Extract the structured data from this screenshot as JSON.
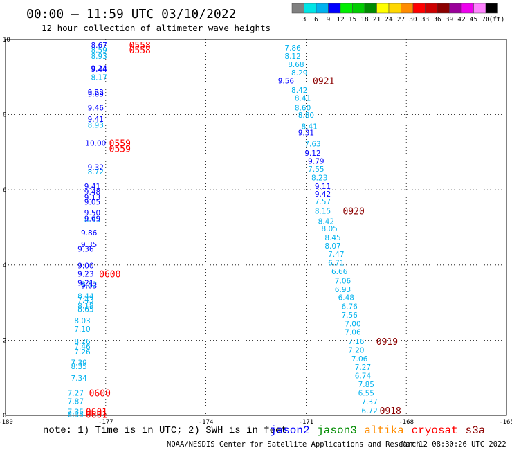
{
  "header": {
    "title": "00:00 — 11:59 UTC 03/10/2022",
    "subtitle": "12 hour collection of altimeter wave heights"
  },
  "legend": {
    "unit": "(ft)",
    "levels": [
      {
        "label": "3",
        "color": "#808080"
      },
      {
        "label": "6",
        "color": "#00e5e5"
      },
      {
        "label": "9",
        "color": "#00b2ee"
      },
      {
        "label": "12",
        "color": "#0000ff"
      },
      {
        "label": "15",
        "color": "#00ee00"
      },
      {
        "label": "18",
        "color": "#00cd00"
      },
      {
        "label": "21",
        "color": "#008b00"
      },
      {
        "label": "24",
        "color": "#ffff00"
      },
      {
        "label": "27",
        "color": "#ffd700"
      },
      {
        "label": "30",
        "color": "#ff8c00"
      },
      {
        "label": "33",
        "color": "#ff0000"
      },
      {
        "label": "36",
        "color": "#cd0000"
      },
      {
        "label": "39",
        "color": "#8b0000"
      },
      {
        "label": "42",
        "color": "#9a009a"
      },
      {
        "label": "45",
        "color": "#ee00ee"
      },
      {
        "label": "70",
        "color": "#ff82ff"
      },
      {
        "label": "",
        "color": "#000000"
      }
    ]
  },
  "footer": {
    "note": "note: 1) Time is in UTC; 2) SWH is in feet",
    "satellites": [
      {
        "name": "jason2",
        "color": "#0000ff"
      },
      {
        "name": "jason3",
        "color": "#008b00"
      },
      {
        "name": "altika",
        "color": "#ff8c00"
      },
      {
        "name": "cryosat",
        "color": "#ff0000"
      },
      {
        "name": "s3a",
        "color": "#8b0000"
      }
    ],
    "credit": "NOAA/NESDIS Center for Satellite Applications and Research",
    "timestamp": "Mar 12 08:30:26 UTC 2022"
  },
  "chart_data": {
    "type": "scatter",
    "xlim": [
      -180,
      -165
    ],
    "ylim": [
      0,
      10
    ],
    "x_ticks": [
      "-180",
      "-177",
      "-174",
      "-171",
      "-168",
      "-165"
    ],
    "x_tick_values": [
      -180,
      -177,
      -174,
      -171,
      -168,
      -165
    ],
    "y_ticks": [
      "0",
      "2",
      "4",
      "6",
      "8",
      "10"
    ],
    "y_tick_values": [
      0,
      2,
      4,
      6,
      8,
      10
    ],
    "grid": true,
    "series": [
      {
        "color": "#00b2ee",
        "points": [
          {
            "x": -177.2,
            "y": 9.72,
            "v": "8.59"
          },
          {
            "x": -177.2,
            "y": 9.56,
            "v": "8.93"
          },
          {
            "x": -177.2,
            "y": 9.0,
            "v": "8.17"
          },
          {
            "x": -177.3,
            "y": 7.73,
            "v": "8.93"
          },
          {
            "x": -177.3,
            "y": 6.48,
            "v": "8.72"
          },
          {
            "x": -177.4,
            "y": 5.21,
            "v": "8.95"
          },
          {
            "x": -177.5,
            "y": 3.49,
            "v": "8.32"
          },
          {
            "x": -177.6,
            "y": 3.18,
            "v": "8.44"
          },
          {
            "x": -177.6,
            "y": 3.08,
            "v": "7.43"
          },
          {
            "x": -177.6,
            "y": 2.92,
            "v": "8.18"
          },
          {
            "x": -177.6,
            "y": 2.83,
            "v": "8.65"
          },
          {
            "x": -177.7,
            "y": 2.52,
            "v": "8.03"
          },
          {
            "x": -177.7,
            "y": 2.3,
            "v": "7.10"
          },
          {
            "x": -177.7,
            "y": 1.97,
            "v": "8.26"
          },
          {
            "x": -177.7,
            "y": 1.83,
            "v": "7.46"
          },
          {
            "x": -177.7,
            "y": 1.69,
            "v": "7.26"
          },
          {
            "x": -177.8,
            "y": 1.41,
            "v": "7.39"
          },
          {
            "x": -177.8,
            "y": 1.31,
            "v": "8.35"
          },
          {
            "x": -177.8,
            "y": 0.99,
            "v": "7.34"
          },
          {
            "x": -177.9,
            "y": 0.6,
            "v": "7.27"
          },
          {
            "x": -177.9,
            "y": 0.38,
            "v": "7.87"
          },
          {
            "x": -177.9,
            "y": 0.1,
            "v": "7.35"
          },
          {
            "x": -177.9,
            "y": 0.03,
            "v": "8.35"
          },
          {
            "x": -171.4,
            "y": 9.78,
            "v": "7.86"
          },
          {
            "x": -171.4,
            "y": 9.56,
            "v": "8.12"
          },
          {
            "x": -171.3,
            "y": 9.34,
            "v": "8.68"
          },
          {
            "x": -171.2,
            "y": 9.12,
            "v": "8.29"
          },
          {
            "x": -171.2,
            "y": 8.66,
            "v": "8.42"
          },
          {
            "x": -171.1,
            "y": 8.44,
            "v": "8.41"
          },
          {
            "x": -171.1,
            "y": 8.19,
            "v": "8.60"
          },
          {
            "x": -171.0,
            "y": 7.99,
            "v": "8.80"
          },
          {
            "x": -170.9,
            "y": 7.69,
            "v": "8.41"
          },
          {
            "x": -170.8,
            "y": 7.23,
            "v": "7.63"
          },
          {
            "x": -170.7,
            "y": 6.56,
            "v": "7.55"
          },
          {
            "x": -170.6,
            "y": 6.33,
            "v": "8.23"
          },
          {
            "x": -170.5,
            "y": 5.69,
            "v": "7.57"
          },
          {
            "x": -170.5,
            "y": 5.44,
            "v": "8.15"
          },
          {
            "x": -170.4,
            "y": 5.17,
            "v": "8.42"
          },
          {
            "x": -170.3,
            "y": 4.97,
            "v": "8.05"
          },
          {
            "x": -170.2,
            "y": 4.73,
            "v": "8.45"
          },
          {
            "x": -170.2,
            "y": 4.51,
            "v": "8.07"
          },
          {
            "x": -170.1,
            "y": 4.29,
            "v": "7.47"
          },
          {
            "x": -170.1,
            "y": 4.06,
            "v": "6.71"
          },
          {
            "x": -170.0,
            "y": 3.83,
            "v": "6.66"
          },
          {
            "x": -169.9,
            "y": 3.58,
            "v": "7.06"
          },
          {
            "x": -169.9,
            "y": 3.35,
            "v": "6.93"
          },
          {
            "x": -169.8,
            "y": 3.14,
            "v": "6.48"
          },
          {
            "x": -169.7,
            "y": 2.9,
            "v": "6.76"
          },
          {
            "x": -169.7,
            "y": 2.67,
            "v": "7.56"
          },
          {
            "x": -169.6,
            "y": 2.44,
            "v": "7.00"
          },
          {
            "x": -169.6,
            "y": 2.22,
            "v": "7.06"
          },
          {
            "x": -169.5,
            "y": 1.97,
            "v": "7.16"
          },
          {
            "x": -169.5,
            "y": 1.74,
            "v": "7.20"
          },
          {
            "x": -169.4,
            "y": 1.51,
            "v": "7.06"
          },
          {
            "x": -169.3,
            "y": 1.29,
            "v": "7.27"
          },
          {
            "x": -169.3,
            "y": 1.06,
            "v": "6.74"
          },
          {
            "x": -169.2,
            "y": 0.83,
            "v": "7.85"
          },
          {
            "x": -169.2,
            "y": 0.6,
            "v": "6.55"
          },
          {
            "x": -169.1,
            "y": 0.37,
            "v": "7.37"
          },
          {
            "x": -169.1,
            "y": 0.13,
            "v": "6.72"
          }
        ]
      },
      {
        "color": "#0000ff",
        "points": [
          {
            "x": -177.2,
            "y": 9.85,
            "v": "8.67"
          },
          {
            "x": -177.2,
            "y": 9.24,
            "v": "9.24"
          },
          {
            "x": -177.2,
            "y": 9.21,
            "v": "9.44"
          },
          {
            "x": -177.3,
            "y": 8.6,
            "v": "9.22"
          },
          {
            "x": -177.3,
            "y": 8.55,
            "v": "9.09"
          },
          {
            "x": -177.3,
            "y": 8.19,
            "v": "9.46"
          },
          {
            "x": -177.3,
            "y": 7.88,
            "v": "9.41"
          },
          {
            "x": -177.3,
            "y": 7.25,
            "v": "10.00"
          },
          {
            "x": -177.3,
            "y": 6.6,
            "v": "9.32"
          },
          {
            "x": -177.4,
            "y": 6.1,
            "v": "9.41"
          },
          {
            "x": -177.4,
            "y": 5.95,
            "v": "9.48"
          },
          {
            "x": -177.4,
            "y": 5.8,
            "v": "9.13"
          },
          {
            "x": -177.4,
            "y": 5.68,
            "v": "9.05"
          },
          {
            "x": -177.4,
            "y": 5.4,
            "v": "9.50"
          },
          {
            "x": -177.4,
            "y": 5.24,
            "v": "9.69"
          },
          {
            "x": -177.5,
            "y": 4.86,
            "v": "9.86"
          },
          {
            "x": -177.6,
            "y": 4.43,
            "v": "9.36"
          },
          {
            "x": -177.5,
            "y": 4.55,
            "v": "9.35"
          },
          {
            "x": -177.6,
            "y": 3.99,
            "v": "9.00"
          },
          {
            "x": -177.6,
            "y": 3.77,
            "v": "9.23"
          },
          {
            "x": -177.6,
            "y": 3.53,
            "v": "9.21"
          },
          {
            "x": -177.5,
            "y": 3.45,
            "v": "9.03"
          },
          {
            "x": -171.6,
            "y": 8.9,
            "v": "9.56"
          },
          {
            "x": -171.0,
            "y": 7.52,
            "v": "9.31"
          },
          {
            "x": -170.8,
            "y": 6.98,
            "v": "9.12"
          },
          {
            "x": -170.7,
            "y": 6.77,
            "v": "9.79"
          },
          {
            "x": -170.5,
            "y": 6.1,
            "v": "9.11"
          },
          {
            "x": -170.5,
            "y": 5.89,
            "v": "9.42"
          }
        ]
      }
    ],
    "time_labels": [
      {
        "x": -176.3,
        "y": 9.85,
        "text": "0558",
        "color": "#ff0000"
      },
      {
        "x": -176.3,
        "y": 9.72,
        "text": "0558",
        "color": "#ff0000"
      },
      {
        "x": -176.9,
        "y": 7.25,
        "text": "0559",
        "color": "#ff0000"
      },
      {
        "x": -176.9,
        "y": 7.1,
        "text": "0559",
        "color": "#ff0000"
      },
      {
        "x": -177.2,
        "y": 3.77,
        "text": "0600",
        "color": "#ff0000"
      },
      {
        "x": -177.5,
        "y": 0.6,
        "text": "0600",
        "color": "#ff0000"
      },
      {
        "x": -177.6,
        "y": 0.1,
        "text": "0601",
        "color": "#ff0000"
      },
      {
        "x": -177.6,
        "y": 0.03,
        "text": "0601",
        "color": "#ff0000"
      },
      {
        "x": -170.8,
        "y": 8.9,
        "text": "0921",
        "color": "#8b0000"
      },
      {
        "x": -169.9,
        "y": 5.44,
        "text": "0920",
        "color": "#8b0000"
      },
      {
        "x": -168.9,
        "y": 1.97,
        "text": "0919",
        "color": "#8b0000"
      },
      {
        "x": -168.8,
        "y": 0.13,
        "text": "0918",
        "color": "#8b0000"
      }
    ]
  }
}
